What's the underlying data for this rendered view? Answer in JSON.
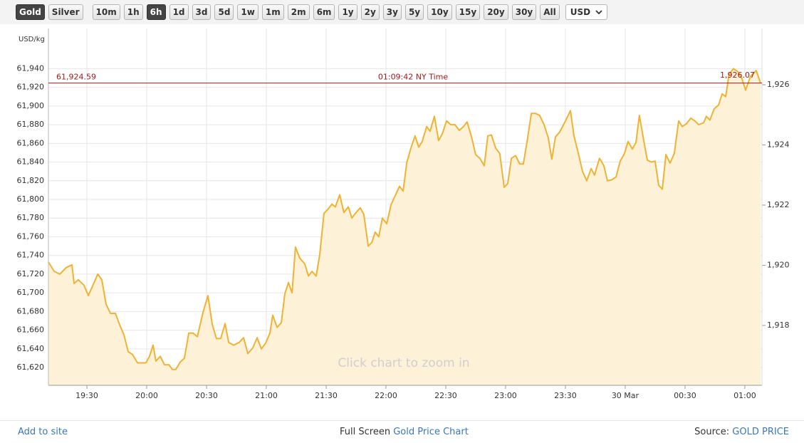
{
  "toolbar": {
    "metals": [
      {
        "label": "Gold",
        "active": true
      },
      {
        "label": "Silver",
        "active": false
      }
    ],
    "ranges": [
      {
        "label": "10m",
        "active": false
      },
      {
        "label": "1h",
        "active": false
      },
      {
        "label": "6h",
        "active": true
      },
      {
        "label": "1d",
        "active": false
      },
      {
        "label": "3d",
        "active": false
      },
      {
        "label": "5d",
        "active": false
      },
      {
        "label": "1w",
        "active": false
      },
      {
        "label": "1m",
        "active": false
      },
      {
        "label": "2m",
        "active": false
      },
      {
        "label": "6m",
        "active": false
      },
      {
        "label": "1y",
        "active": false
      },
      {
        "label": "2y",
        "active": false
      },
      {
        "label": "3y",
        "active": false
      },
      {
        "label": "5y",
        "active": false
      },
      {
        "label": "10y",
        "active": false
      },
      {
        "label": "15y",
        "active": false
      },
      {
        "label": "20y",
        "active": false
      },
      {
        "label": "30y",
        "active": false
      },
      {
        "label": "All",
        "active": false
      }
    ],
    "currency": "USD"
  },
  "chart_data": {
    "type": "line",
    "y_label": "USD/kg",
    "color": "#f0b232",
    "area_color": "#fdf1d8",
    "grid": true,
    "annotation": "Click chart to zoom in",
    "current": {
      "value": 61924.59,
      "label": "61,924.59",
      "time": "01:09:42 NY Time",
      "y2_value": 1926.07,
      "y2_label": "1,926.07",
      "color": "#a01c1c"
    },
    "x": [
      1150.7,
      1153.6,
      1156.4,
      1159.6,
      1162.5,
      1163.6,
      1165.7,
      1168.6,
      1170.7,
      1173.2,
      1175.4,
      1177.5,
      1179.6,
      1181.8,
      1184.3,
      1186.4,
      1188.6,
      1190.7,
      1192.9,
      1195.4,
      1197.5,
      1199.6,
      1201.4,
      1203.2,
      1204.6,
      1206.8,
      1208.9,
      1211.1,
      1212.9,
      1214.6,
      1216.8,
      1218.9,
      1221.1,
      1223.2,
      1225.4,
      1228.2,
      1230.7,
      1232.9,
      1235.0,
      1237.1,
      1239.3,
      1241.1,
      1243.6,
      1246.4,
      1248.6,
      1250.7,
      1253.2,
      1255.4,
      1257.5,
      1259.6,
      1261.8,
      1263.2,
      1265.4,
      1267.5,
      1269.3,
      1271.1,
      1272.9,
      1274.6,
      1276.8,
      1279.3,
      1281.1,
      1282.9,
      1285.0,
      1286.8,
      1288.9,
      1291.1,
      1292.9,
      1294.6,
      1296.8,
      1298.9,
      1301.1,
      1302.9,
      1305.0,
      1307.1,
      1308.9,
      1311.1,
      1312.9,
      1314.6,
      1316.4,
      1318.2,
      1320.4,
      1322.5,
      1324.6,
      1326.8,
      1328.6,
      1330.4,
      1332.5,
      1334.6,
      1336.4,
      1338.2,
      1340.4,
      1342.1,
      1344.3,
      1346.4,
      1348.2,
      1350.4,
      1352.5,
      1354.6,
      1356.8,
      1358.9,
      1360.7,
      1362.9,
      1365.0,
      1367.1,
      1369.3,
      1371.1,
      1372.9,
      1375.0,
      1377.1,
      1379.3,
      1381.1,
      1382.9,
      1385.0,
      1387.1,
      1388.9,
      1391.1,
      1392.9,
      1395.0,
      1397.1,
      1399.3,
      1401.4,
      1403.2,
      1405.0,
      1407.1,
      1409.3,
      1412.5,
      1414.3,
      1416.4,
      1418.6,
      1420.7,
      1422.9,
      1424.6,
      1427.1,
      1429.3,
      1431.1,
      1433.2,
      1435.4,
      1437.5,
      1439.6,
      1441.4,
      1443.6,
      1445.4,
      1447.1,
      1449.3,
      1451.1,
      1453.2,
      1455.0,
      1456.8,
      1458.6,
      1460.4,
      1462.5,
      1464.6,
      1466.8,
      1468.6,
      1470.7,
      1472.9,
      1475.0,
      1476.8,
      1479.3,
      1480.7,
      1482.5,
      1484.6,
      1486.8,
      1488.6,
      1490.4,
      1492.1,
      1494.3,
      1496.4,
      1498.6,
      1500.4,
      1502.9,
      1505.7,
      1507.9
    ],
    "values": [
      61733,
      61723,
      61720,
      61727,
      61730,
      61710,
      61714,
      61708,
      61697,
      61709,
      61720,
      61714,
      61688,
      61678,
      61678,
      61666,
      61655,
      61637,
      61634,
      61625,
      61625,
      61625,
      61632,
      61644,
      61627,
      61632,
      61623,
      61623,
      61618,
      61618,
      61626,
      61630,
      61657,
      61657,
      61653,
      61679,
      61697,
      61666,
      61651,
      61651,
      61667,
      61647,
      61644,
      61647,
      61652,
      61635,
      61641,
      61652,
      61640,
      61646,
      61657,
      61676,
      61663,
      61668,
      61699,
      61711,
      61700,
      61749,
      61737,
      61731,
      61718,
      61723,
      61718,
      61741,
      61785,
      61790,
      61795,
      61792,
      61805,
      61786,
      61792,
      61780,
      61786,
      61791,
      61784,
      61750,
      61754,
      61765,
      61760,
      61780,
      61774,
      61794,
      61804,
      61814,
      61809,
      61839,
      61855,
      61868,
      61856,
      61862,
      61878,
      61873,
      61889,
      61863,
      61870,
      61884,
      61880,
      61880,
      61874,
      61878,
      61883,
      61867,
      61848,
      61844,
      61836,
      61868,
      61869,
      61855,
      61849,
      61813,
      61817,
      61844,
      61847,
      61838,
      61838,
      61866,
      61892,
      61892,
      61890,
      61880,
      61866,
      61843,
      61867,
      61872,
      61881,
      61895,
      61868,
      61850,
      61830,
      61820,
      61833,
      61826,
      61844,
      61836,
      61820,
      61821,
      61824,
      61841,
      61849,
      61862,
      61854,
      61861,
      61890,
      61863,
      61842,
      61840,
      61841,
      61815,
      61811,
      61848,
      61839,
      61849,
      61884,
      61878,
      61881,
      61887,
      61884,
      61880,
      61882,
      61889,
      61885,
      61897,
      61901,
      61913,
      61910,
      61934,
      61940,
      61937,
      61929,
      61917,
      61932,
      61938,
      61924.59
    ],
    "xlim": [
      1150.7,
      1508.6
    ],
    "xticks": [
      {
        "value": 1170,
        "label": "19:30"
      },
      {
        "value": 1200,
        "label": "20:00"
      },
      {
        "value": 1230,
        "label": "20:30"
      },
      {
        "value": 1260,
        "label": "21:00"
      },
      {
        "value": 1290,
        "label": "21:30"
      },
      {
        "value": 1320,
        "label": "22:00"
      },
      {
        "value": 1350,
        "label": "22:30"
      },
      {
        "value": 1380,
        "label": "23:00"
      },
      {
        "value": 1410,
        "label": "23:30"
      },
      {
        "value": 1440,
        "label": "30 Mar"
      },
      {
        "value": 1470,
        "label": "00:30"
      },
      {
        "value": 1500,
        "label": "01:00"
      }
    ],
    "ylim": [
      61601,
      61983
    ],
    "yticks": [
      {
        "value": 61620,
        "label": "61,620"
      },
      {
        "value": 61640,
        "label": "61,640"
      },
      {
        "value": 61660,
        "label": "61,660"
      },
      {
        "value": 61680,
        "label": "61,680"
      },
      {
        "value": 61700,
        "label": "61,700"
      },
      {
        "value": 61720,
        "label": "61,720"
      },
      {
        "value": 61740,
        "label": "61,740"
      },
      {
        "value": 61760,
        "label": "61,760"
      },
      {
        "value": 61780,
        "label": "61,780"
      },
      {
        "value": 61800,
        "label": "61,800"
      },
      {
        "value": 61820,
        "label": "61,820"
      },
      {
        "value": 61840,
        "label": "61,840"
      },
      {
        "value": 61860,
        "label": "61,860"
      },
      {
        "value": 61880,
        "label": "61,880"
      },
      {
        "value": 61900,
        "label": "61,900"
      },
      {
        "value": 61920,
        "label": "61,920"
      },
      {
        "value": 61940,
        "label": "61,940"
      }
    ],
    "y2lim": [
      1916.01,
      1927.87
    ],
    "y2ticks": [
      {
        "value": 1918,
        "label": "1,918"
      },
      {
        "value": 1920,
        "label": "1,920"
      },
      {
        "value": 1922,
        "label": "1,922"
      },
      {
        "value": 1924,
        "label": "1,924"
      },
      {
        "value": 1926,
        "label": "1,926"
      }
    ]
  },
  "footer": {
    "left_link": "Add to site",
    "center_text": "Full Screen",
    "center_link": "Gold Price Chart",
    "right_text": "Source:",
    "right_link": "GOLD PRICE"
  }
}
